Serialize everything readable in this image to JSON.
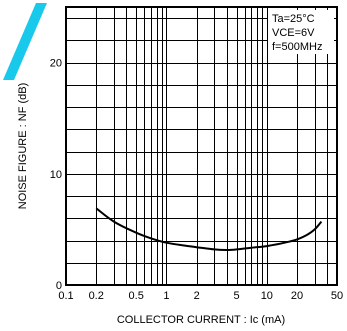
{
  "chart_data": {
    "type": "line",
    "title": "",
    "xlabel": "COLLECTOR  CURRENT : Ic (mA)",
    "ylabel": "NOISE FIGURE : NF (dB)",
    "x_scale": "log",
    "xlim": [
      0.1,
      50
    ],
    "ylim": [
      0,
      25
    ],
    "grid": true,
    "x_major_ticks": [
      0.1,
      1,
      10
    ],
    "x_minor_ticks": [
      0.2,
      0.3,
      0.4,
      0.5,
      0.6,
      0.7,
      0.8,
      0.9,
      2,
      3,
      4,
      5,
      6,
      7,
      8,
      9,
      20,
      30,
      40
    ],
    "x_tick_labels": [
      {
        "value": 0.1,
        "label": "0.1"
      },
      {
        "value": 0.2,
        "label": "0.2"
      },
      {
        "value": 0.5,
        "label": "0.5"
      },
      {
        "value": 1,
        "label": "1"
      },
      {
        "value": 2,
        "label": "2"
      },
      {
        "value": 5,
        "label": "5"
      },
      {
        "value": 10,
        "label": "10"
      },
      {
        "value": 20,
        "label": "20"
      },
      {
        "value": 50,
        "label": "50"
      }
    ],
    "y_grid_step": 2,
    "y_tick_labels": [
      {
        "value": 0,
        "label": "0"
      },
      {
        "value": 10,
        "label": "10"
      },
      {
        "value": 20,
        "label": "20"
      }
    ],
    "conditions": [
      "Ta=25°C",
      "VCE=6V",
      "f=500MHz"
    ],
    "series": [
      {
        "x": [
          0.2,
          0.3,
          0.5,
          0.7,
          1,
          1.5,
          2,
          3,
          4,
          5,
          7,
          10,
          15,
          20,
          25,
          30,
          35
        ],
        "y": [
          6.9,
          5.7,
          4.7,
          4.2,
          3.8,
          3.55,
          3.4,
          3.2,
          3.15,
          3.2,
          3.35,
          3.5,
          3.8,
          4.1,
          4.5,
          5.0,
          5.7
        ]
      }
    ]
  }
}
